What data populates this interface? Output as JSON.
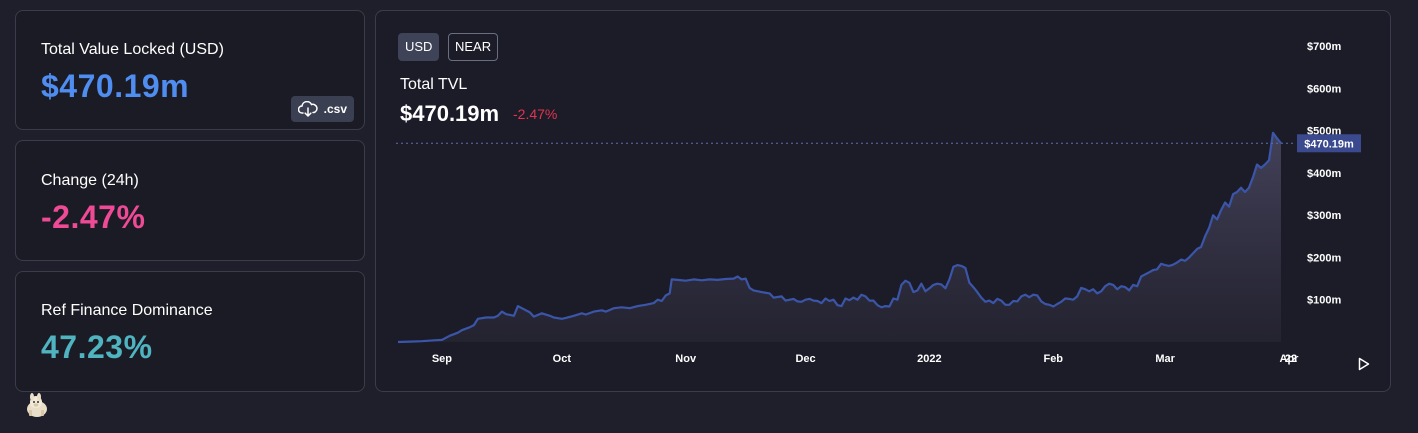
{
  "stats": {
    "tvl": {
      "label": "Total Value Locked (USD)",
      "value": "$470.19m",
      "color": "#4f8ef0"
    },
    "change": {
      "label": "Change (24h)",
      "value": "-2.47%",
      "color": "#ee4a96"
    },
    "dominance": {
      "label": "Ref Finance Dominance",
      "value": "47.23%",
      "color": "#4fb3c0"
    },
    "csv_label": ".csv"
  },
  "chart": {
    "toggles": [
      {
        "label": "USD",
        "active": true
      },
      {
        "label": "NEAR",
        "active": false
      }
    ],
    "title": "Total TVL",
    "value": "$470.19m",
    "change": "-2.47%",
    "current_label": "$470.19m",
    "line_color": "#3b55a8"
  },
  "chart_data": {
    "type": "area",
    "title": "Total TVL",
    "ylim": [
      0,
      750
    ],
    "y_ticks": [
      {
        "label": "$100m",
        "value": 100
      },
      {
        "label": "$200m",
        "value": 200
      },
      {
        "label": "$300m",
        "value": 300
      },
      {
        "label": "$400m",
        "value": 400
      },
      {
        "label": "$500m",
        "value": 500
      },
      {
        "label": "$600m",
        "value": 600
      },
      {
        "label": "$700m",
        "value": 700
      }
    ],
    "x_ticks": [
      {
        "label": "Sep",
        "day": 11
      },
      {
        "label": "Oct",
        "day": 41
      },
      {
        "label": "Nov",
        "day": 72
      },
      {
        "label": "Dec",
        "day": 102
      },
      {
        "label": "2022",
        "day": 133
      },
      {
        "label": "Feb",
        "day": 164
      },
      {
        "label": "Mar",
        "day": 192
      },
      {
        "label": "Apr",
        "day": 223
      },
      {
        "label": "22",
        "day": 244
      }
    ],
    "current_value": 470.19,
    "series": [
      {
        "values": [
          [
            0,
            0
          ],
          [
            3,
            1
          ],
          [
            6,
            2
          ],
          [
            9,
            4
          ],
          [
            11,
            5
          ],
          [
            13,
            15
          ],
          [
            15,
            22
          ],
          [
            16,
            28
          ],
          [
            18,
            35
          ],
          [
            19,
            40
          ],
          [
            20,
            55
          ],
          [
            22,
            58
          ],
          [
            24,
            58
          ],
          [
            25,
            62
          ],
          [
            26,
            72
          ],
          [
            27,
            66
          ],
          [
            29,
            62
          ],
          [
            30,
            85
          ],
          [
            31,
            80
          ],
          [
            33,
            70
          ],
          [
            34,
            60
          ],
          [
            36,
            68
          ],
          [
            38,
            62
          ],
          [
            39,
            58
          ],
          [
            41,
            55
          ],
          [
            42,
            57
          ],
          [
            44,
            62
          ],
          [
            46,
            68
          ],
          [
            47,
            65
          ],
          [
            49,
            72
          ],
          [
            51,
            75
          ],
          [
            52,
            72
          ],
          [
            54,
            80
          ],
          [
            56,
            82
          ],
          [
            58,
            80
          ],
          [
            60,
            85
          ],
          [
            62,
            88
          ],
          [
            64,
            92
          ],
          [
            65,
            100
          ],
          [
            66,
            97
          ],
          [
            67,
            110
          ],
          [
            68,
            115
          ],
          [
            68.5,
            148
          ],
          [
            70,
            147
          ],
          [
            72,
            145
          ],
          [
            74,
            148
          ],
          [
            76,
            146
          ],
          [
            78,
            148
          ],
          [
            80,
            147
          ],
          [
            82,
            149
          ],
          [
            84,
            150
          ],
          [
            85,
            155
          ],
          [
            86,
            148
          ],
          [
            87,
            150
          ],
          [
            88,
            128
          ],
          [
            89,
            122
          ],
          [
            91,
            118
          ],
          [
            93,
            115
          ],
          [
            94,
            105
          ],
          [
            96,
            108
          ],
          [
            97,
            98
          ],
          [
            99,
            102
          ],
          [
            100,
            96
          ],
          [
            101,
            95
          ],
          [
            102,
            100
          ],
          [
            103,
            102
          ],
          [
            104,
            98
          ],
          [
            105,
            97
          ],
          [
            106,
            92
          ],
          [
            107,
            103
          ],
          [
            108,
            97
          ],
          [
            109,
            100
          ],
          [
            110,
            87
          ],
          [
            111,
            85
          ],
          [
            112,
            103
          ],
          [
            113,
            99
          ],
          [
            114,
            105
          ],
          [
            115,
            100
          ],
          [
            116,
            112
          ],
          [
            117,
            108
          ],
          [
            118,
            98
          ],
          [
            119,
            98
          ],
          [
            120,
            87
          ],
          [
            121,
            82
          ],
          [
            122,
            85
          ],
          [
            123,
            84
          ],
          [
            124,
            103
          ],
          [
            125,
            100
          ],
          [
            126,
            135
          ],
          [
            127,
            145
          ],
          [
            128,
            140
          ],
          [
            129,
            118
          ],
          [
            130,
            122
          ],
          [
            131,
            138
          ],
          [
            132,
            120
          ],
          [
            133,
            127
          ],
          [
            134,
            135
          ],
          [
            135,
            138
          ],
          [
            136,
            136
          ],
          [
            137,
            127
          ],
          [
            138,
            148
          ],
          [
            139,
            178
          ],
          [
            140,
            182
          ],
          [
            141,
            180
          ],
          [
            142,
            175
          ],
          [
            143,
            140
          ],
          [
            144,
            130
          ],
          [
            145,
            118
          ],
          [
            146,
            105
          ],
          [
            147,
            95
          ],
          [
            148,
            98
          ],
          [
            149,
            92
          ],
          [
            150,
            102
          ],
          [
            151,
            98
          ],
          [
            152,
            88
          ],
          [
            153,
            88
          ],
          [
            154,
            97
          ],
          [
            155,
            96
          ],
          [
            156,
            108
          ],
          [
            157,
            112
          ],
          [
            158,
            106
          ],
          [
            159,
            112
          ],
          [
            160,
            110
          ],
          [
            161,
            96
          ],
          [
            162,
            90
          ],
          [
            163,
            88
          ],
          [
            164,
            84
          ],
          [
            165,
            90
          ],
          [
            166,
            95
          ],
          [
            167,
            103
          ],
          [
            168,
            102
          ],
          [
            169,
            100
          ],
          [
            170,
            108
          ],
          [
            171,
            128
          ],
          [
            172,
            125
          ],
          [
            173,
            120
          ],
          [
            174,
            125
          ],
          [
            175,
            115
          ],
          [
            176,
            120
          ],
          [
            177,
            132
          ],
          [
            178,
            138
          ],
          [
            179,
            135
          ],
          [
            180,
            125
          ],
          [
            181,
            132
          ],
          [
            182,
            130
          ],
          [
            183,
            122
          ],
          [
            184,
            135
          ],
          [
            185,
            132
          ],
          [
            186,
            155
          ],
          [
            187,
            160
          ],
          [
            188,
            165
          ],
          [
            189,
            170
          ],
          [
            190,
            172
          ],
          [
            191,
            185
          ],
          [
            192,
            182
          ],
          [
            193,
            180
          ],
          [
            194,
            183
          ],
          [
            195,
            188
          ],
          [
            196,
            195
          ],
          [
            197,
            192
          ],
          [
            198,
            200
          ],
          [
            199,
            210
          ],
          [
            200,
            220
          ],
          [
            201,
            225
          ],
          [
            202,
            250
          ],
          [
            203,
            270
          ],
          [
            204,
            300
          ],
          [
            205,
            290
          ],
          [
            206,
            312
          ],
          [
            207,
            330
          ],
          [
            208,
            320
          ],
          [
            209,
            350
          ],
          [
            210,
            355
          ],
          [
            211,
            365
          ],
          [
            212,
            355
          ],
          [
            213,
            365
          ],
          [
            214,
            390
          ],
          [
            215,
            420
          ],
          [
            216,
            412
          ],
          [
            217,
            420
          ],
          [
            218,
            430
          ],
          [
            219,
            495
          ],
          [
            220,
            482
          ],
          [
            221,
            470.19
          ]
        ]
      }
    ]
  }
}
